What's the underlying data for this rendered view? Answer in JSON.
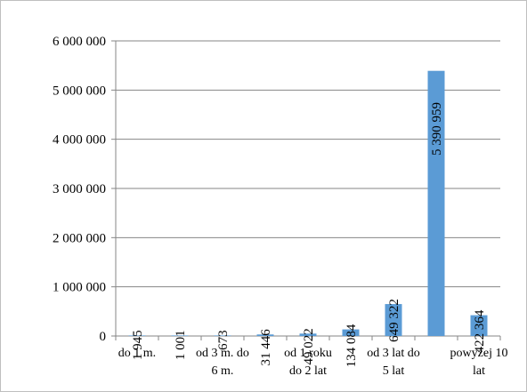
{
  "chart_data": {
    "type": "bar",
    "categories": [
      "do 1 m.",
      "",
      "od 3 m. do 6 m.",
      "",
      "od 1 roku do 2 lat",
      "",
      "od 3 lat do 5 lat",
      "",
      "powyżej 10 lat"
    ],
    "category_label_lines": [
      [
        "do 1 m."
      ],
      [
        ""
      ],
      [
        "od 3 m. do",
        "6 m."
      ],
      [
        ""
      ],
      [
        "od 1 roku",
        "do 2 lat"
      ],
      [
        ""
      ],
      [
        "od 3 lat do",
        "5 lat"
      ],
      [
        ""
      ],
      [
        "powyżej 10",
        "lat"
      ]
    ],
    "values": [
      1945,
      1001,
      673,
      31446,
      49022,
      134084,
      649322,
      5390959,
      422364
    ],
    "data_labels": [
      "1 945",
      "1 001",
      "673",
      "31 446",
      "49 022",
      "134 084",
      "649 322",
      "5 390 959",
      "422 364"
    ],
    "ylim": [
      0,
      6000000
    ],
    "yticks": [
      0,
      1000000,
      2000000,
      3000000,
      4000000,
      5000000,
      6000000
    ],
    "ytick_labels": [
      "0",
      "1 000 000",
      "2 000 000",
      "3 000 000",
      "4 000 000",
      "5 000 000",
      "6 000 000"
    ],
    "title": "",
    "xlabel": "",
    "ylabel": "",
    "grid": true,
    "legend": "none",
    "bar_color": "#5B9BD5",
    "grid_color": "#868686"
  }
}
